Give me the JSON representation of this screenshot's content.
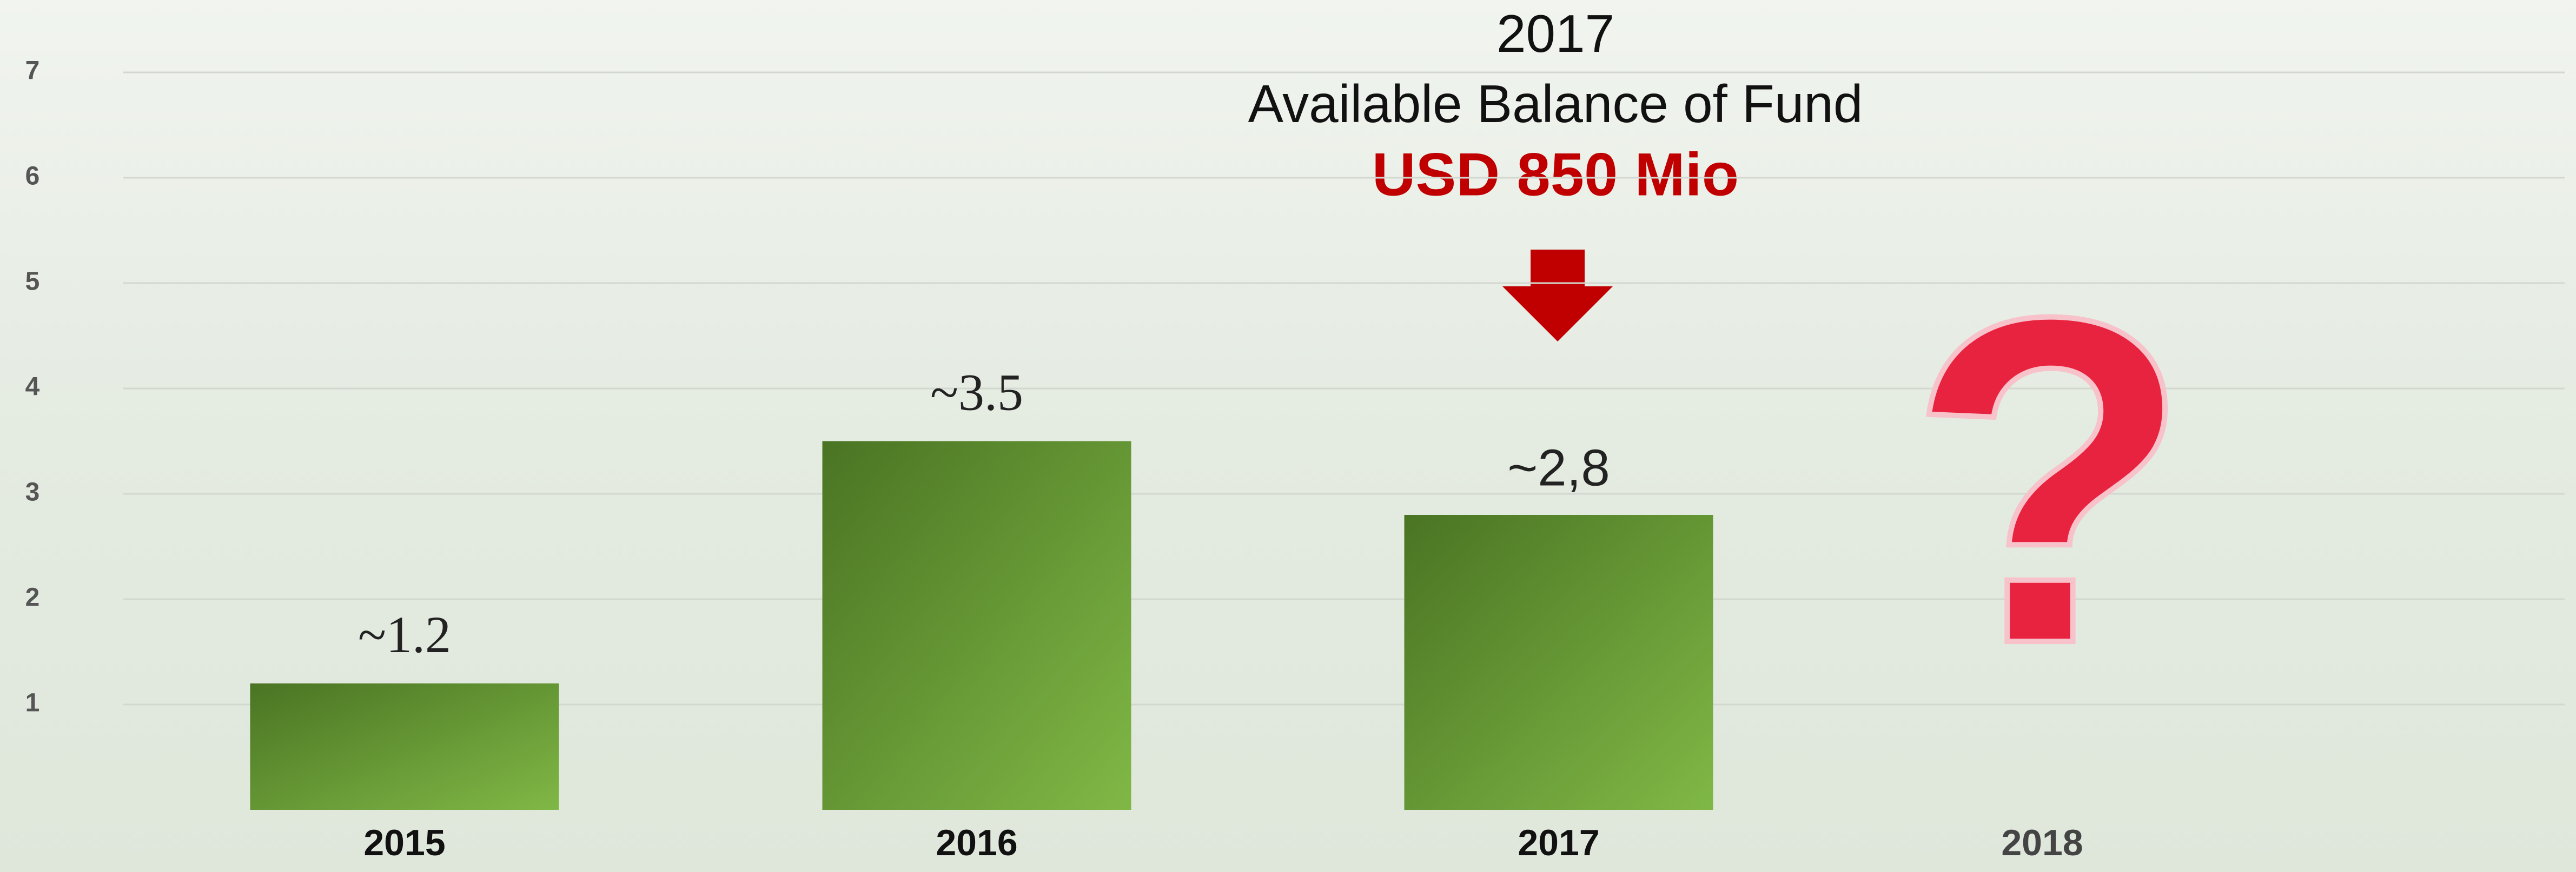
{
  "chart_data": {
    "type": "bar",
    "annotations": [
      "2017",
      "Available Balance of Fund",
      "USD 850 Mio"
    ],
    "question_mark": "?",
    "categories": [
      "2015",
      "2016",
      "2017",
      "2018"
    ],
    "values": [
      1.2,
      3.5,
      2.8,
      null
    ],
    "value_labels": [
      "~1.2",
      "~3.5",
      "~2,8",
      null
    ],
    "color": "#6a9e36",
    "ylim": [
      0,
      7
    ],
    "yticks": [
      1,
      2,
      3,
      4,
      5,
      6,
      7
    ],
    "grid": true
  }
}
